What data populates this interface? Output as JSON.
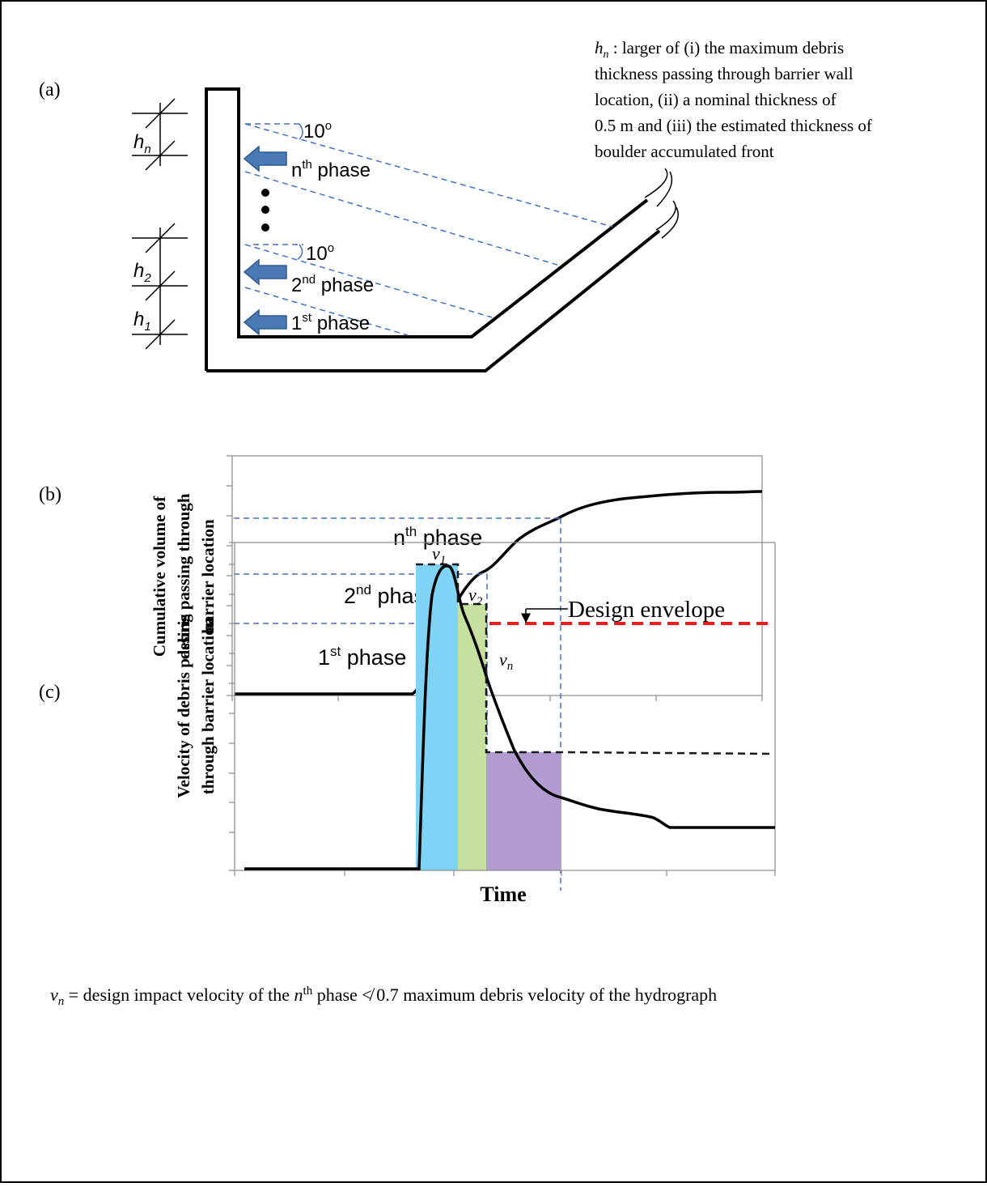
{
  "panels": {
    "a": "(a)",
    "b": "(b)",
    "c": "(c)"
  },
  "note_hn": {
    "symbol": "h",
    "sub": "n",
    "lines": [
      " : larger of (i) the maximum debris",
      "thickness passing through barrier wall",
      "location, (ii) a nominal thickness of",
      "0.5 m and (iii) the estimated thickness of",
      "boulder accumulated front"
    ]
  },
  "diagram_a": {
    "angle_label": "10",
    "angle_sup": "o",
    "heights": [
      {
        "base": "h",
        "sub": "n"
      },
      {
        "base": "h",
        "sub": "2"
      },
      {
        "base": "h",
        "sub": "1"
      }
    ],
    "phases": [
      {
        "base": "n",
        "sup": "th",
        "rest": " phase"
      },
      {
        "base": "2",
        "sup": "nd",
        "rest": " phase"
      },
      {
        "base": "1",
        "sup": "st",
        "rest": " phase"
      }
    ]
  },
  "chart_b": {
    "ylabel_lines": [
      "Cumulative volume of",
      "debris passing through",
      "barrier location"
    ],
    "phases": [
      {
        "base": "n",
        "sup": "th",
        "rest": " phase"
      },
      {
        "base": "2",
        "sup": "nd",
        "rest": " phase"
      },
      {
        "base": "1",
        "sup": "st",
        "rest": " phase"
      }
    ]
  },
  "chart_c": {
    "ylabel_lines": [
      "Velocity of debris passing",
      "through barrier location"
    ],
    "xlabel": "Time",
    "velocities": [
      {
        "base": "v",
        "sub": "1"
      },
      {
        "base": "v",
        "sub": "2"
      },
      {
        "base": "v",
        "sub": "n"
      }
    ],
    "envelope_label": "Design envelope"
  },
  "footnote": {
    "v": "v",
    "v_sub": "n",
    "part1": " = design impact velocity of the ",
    "n": "n",
    "n_sup": "th",
    "part2": " phase ≮ 0.7 maximum debris velocity of the hydrograph"
  },
  "colors": {
    "guide_blue": "#4472c4",
    "arrow_blue": "#4a7ab5",
    "phase1_fill": "#7fd3f5",
    "phase2_fill": "#c6e0a0",
    "phasen_fill": "#b29bd0",
    "envelope_red": "#ee1c1c"
  }
}
